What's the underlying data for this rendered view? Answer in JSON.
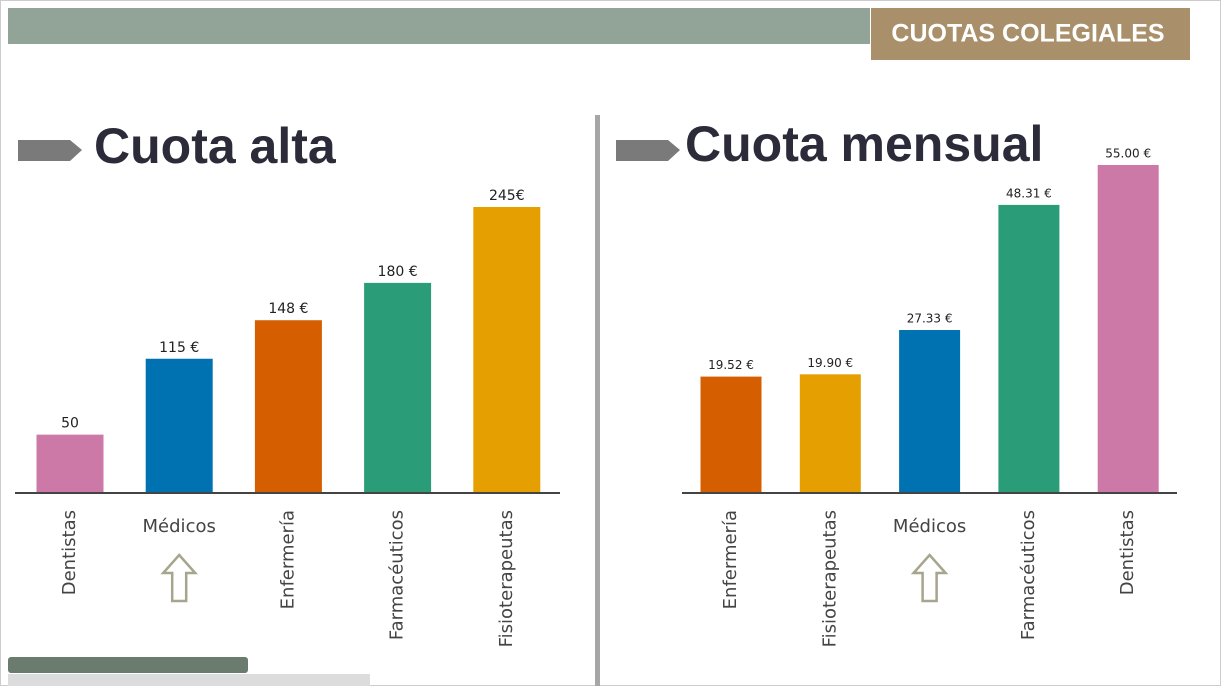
{
  "header": {
    "title": "CUOTAS COLEGIALES"
  },
  "chart_data": [
    {
      "type": "bar",
      "title": "Cuota alta",
      "categories": [
        "Dentistas",
        "Médicos",
        "Enfermería",
        "Farmacéuticos",
        "Fisioterapeutas"
      ],
      "values": [
        50,
        115,
        148,
        180,
        245
      ],
      "value_labels": [
        "50",
        "115 €",
        "148 €",
        "180 €",
        "245€"
      ],
      "colors": [
        "#cc79a7",
        "#0072b2",
        "#d55e00",
        "#2a9d78",
        "#e69f00"
      ],
      "highlighted": 1
    },
    {
      "type": "bar",
      "title": "Cuota mensual",
      "categories": [
        "Enfermería",
        "Fisioterapeutas",
        "Médicos",
        "Farmacéuticos",
        "Dentistas"
      ],
      "values": [
        19.52,
        19.9,
        27.33,
        48.31,
        55.0
      ],
      "value_labels": [
        "19.52 €",
        "19.90 €",
        "27.33 €",
        "48.31 €",
        "55.00 €"
      ],
      "colors": [
        "#d55e00",
        "#e69f00",
        "#0072b2",
        "#2a9d78",
        "#cc79a7"
      ],
      "highlighted": 2
    }
  ]
}
